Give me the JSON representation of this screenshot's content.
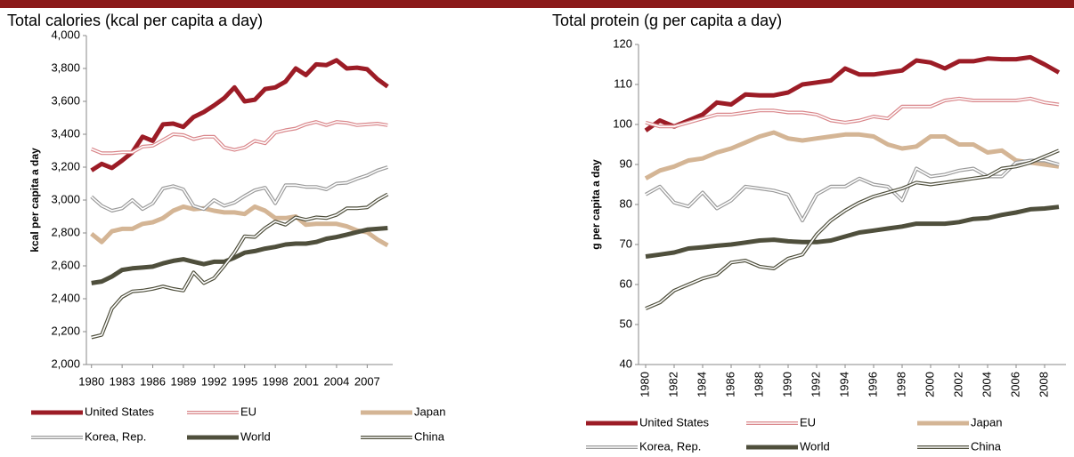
{
  "chart_data": [
    {
      "type": "line",
      "title": "Total calories (kcal per capita a day)",
      "y_label": "kcal per capita a day",
      "x": [
        1980,
        1981,
        1982,
        1983,
        1984,
        1985,
        1986,
        1987,
        1988,
        1989,
        1990,
        1991,
        1992,
        1993,
        1994,
        1995,
        1996,
        1997,
        1998,
        1999,
        2000,
        2001,
        2002,
        2003,
        2004,
        2005,
        2006,
        2007,
        2008,
        2009
      ],
      "xlim": [
        1979.5,
        2009.5
      ],
      "xticks": [
        1980,
        1983,
        1986,
        1989,
        1992,
        1995,
        1998,
        2001,
        2004,
        2007
      ],
      "ylim": [
        2000,
        4000
      ],
      "yticks": [
        {
          "value": 2000,
          "label": "2,000"
        },
        {
          "value": 2200,
          "label": "2,200"
        },
        {
          "value": 2400,
          "label": "2,400"
        },
        {
          "value": 2600,
          "label": "2,600"
        },
        {
          "value": 2800,
          "label": "2,800"
        },
        {
          "value": 3000,
          "label": "3,000"
        },
        {
          "value": 3200,
          "label": "3,200"
        },
        {
          "value": 3400,
          "label": "3,400"
        },
        {
          "value": 3600,
          "label": "3,600"
        },
        {
          "value": 3800,
          "label": "3,800"
        },
        {
          "value": 4000,
          "label": "4,000"
        }
      ],
      "series": [
        {
          "name": "United States",
          "color": "#9c1c26",
          "style": "thick",
          "values": [
            3180,
            3220,
            3195,
            3240,
            3290,
            3385,
            3360,
            3460,
            3465,
            3445,
            3505,
            3535,
            3575,
            3620,
            3685,
            3600,
            3610,
            3675,
            3685,
            3720,
            3800,
            3760,
            3825,
            3820,
            3850,
            3800,
            3805,
            3795,
            3735,
            3690
          ]
        },
        {
          "name": "EU",
          "color": "#d9868a",
          "style": "double",
          "values": [
            3310,
            3285,
            3285,
            3290,
            3290,
            3325,
            3330,
            3365,
            3400,
            3395,
            3370,
            3385,
            3385,
            3320,
            3305,
            3320,
            3360,
            3345,
            3410,
            3425,
            3435,
            3460,
            3475,
            3455,
            3475,
            3470,
            3455,
            3460,
            3465,
            3455
          ]
        },
        {
          "name": "Japan",
          "color": "#d4b595",
          "style": "thick",
          "values": [
            2795,
            2745,
            2810,
            2825,
            2825,
            2855,
            2865,
            2890,
            2935,
            2960,
            2945,
            2950,
            2935,
            2925,
            2925,
            2915,
            2960,
            2935,
            2890,
            2890,
            2900,
            2850,
            2855,
            2855,
            2855,
            2840,
            2815,
            2805,
            2760,
            2725
          ]
        },
        {
          "name": "Korea, Rep.",
          "color": "#9a9a9a",
          "style": "double",
          "values": [
            3020,
            2965,
            2935,
            2950,
            3000,
            2945,
            2980,
            3070,
            3085,
            3065,
            2965,
            2945,
            3000,
            2965,
            2985,
            3025,
            3060,
            3075,
            2980,
            3090,
            3090,
            3080,
            3080,
            3065,
            3100,
            3105,
            3130,
            3150,
            3180,
            3200
          ]
        },
        {
          "name": "World",
          "color": "#4f4f3c",
          "style": "thick",
          "values": [
            2495,
            2505,
            2535,
            2575,
            2585,
            2590,
            2595,
            2615,
            2630,
            2640,
            2625,
            2610,
            2625,
            2625,
            2650,
            2680,
            2690,
            2705,
            2715,
            2730,
            2735,
            2735,
            2745,
            2765,
            2775,
            2790,
            2805,
            2820,
            2825,
            2830
          ]
        },
        {
          "name": "China",
          "color": "#4f4f3c",
          "style": "double",
          "values": [
            2165,
            2180,
            2340,
            2410,
            2445,
            2450,
            2460,
            2475,
            2460,
            2450,
            2560,
            2495,
            2525,
            2600,
            2680,
            2780,
            2775,
            2830,
            2870,
            2850,
            2895,
            2880,
            2895,
            2890,
            2910,
            2950,
            2950,
            2955,
            3000,
            3035
          ]
        }
      ]
    },
    {
      "type": "line",
      "title": "Total protein (g per capita a day)",
      "y_label": "g per capita a day",
      "x": [
        1980,
        1981,
        1982,
        1983,
        1984,
        1985,
        1986,
        1987,
        1988,
        1989,
        1990,
        1991,
        1992,
        1993,
        1994,
        1995,
        1996,
        1997,
        1998,
        1999,
        2000,
        2001,
        2002,
        2003,
        2004,
        2005,
        2006,
        2007,
        2008,
        2009
      ],
      "xlim": [
        1979.5,
        2009.5
      ],
      "xticks": [
        1980,
        1982,
        1984,
        1986,
        1988,
        1990,
        1992,
        1994,
        1996,
        1998,
        2000,
        2002,
        2004,
        2006,
        2008
      ],
      "ylim": [
        40,
        120
      ],
      "yticks": [
        40,
        50,
        60,
        70,
        80,
        90,
        100,
        110,
        120
      ],
      "series": [
        {
          "name": "United States",
          "color": "#9c1c26",
          "style": "thick",
          "values": [
            98.5,
            101,
            99.5,
            101,
            102.5,
            105.5,
            105,
            107.5,
            107.3,
            107.3,
            108,
            110,
            110.5,
            111,
            114,
            112.5,
            112.5,
            113,
            113.5,
            116,
            115.5,
            114,
            115.8,
            115.8,
            116.5,
            116.3,
            116.3,
            116.8,
            115,
            113
          ]
        },
        {
          "name": "EU",
          "color": "#d9868a",
          "style": "double",
          "values": [
            100.5,
            99.5,
            99.5,
            100.5,
            101.5,
            102.5,
            102.5,
            103,
            103.5,
            103.5,
            103,
            103,
            102.5,
            101,
            100.5,
            101,
            102,
            101.5,
            104.5,
            104.5,
            104.5,
            106,
            106.5,
            106,
            106,
            106,
            106,
            106.5,
            105.5,
            105
          ]
        },
        {
          "name": "Japan",
          "color": "#d4b595",
          "style": "thick",
          "values": [
            86.5,
            88.5,
            89.5,
            91,
            91.5,
            93,
            94,
            95.5,
            97,
            98,
            96.5,
            96,
            96.5,
            97,
            97.5,
            97.5,
            97,
            95,
            94,
            94.5,
            97,
            97,
            95,
            95,
            93,
            93.5,
            91,
            90.5,
            90,
            89.5
          ]
        },
        {
          "name": "Korea, Rep.",
          "color": "#9a9a9a",
          "style": "double",
          "values": [
            82.5,
            84.5,
            80.5,
            79.5,
            83,
            79,
            81,
            84.5,
            84,
            83.5,
            82.5,
            76,
            82.5,
            84.5,
            84.5,
            86.5,
            85,
            84.5,
            81,
            89,
            87,
            87.5,
            88.5,
            89,
            87,
            87,
            90.5,
            91,
            91,
            90
          ]
        },
        {
          "name": "World",
          "color": "#4f4f3c",
          "style": "thick",
          "values": [
            67,
            67.5,
            68,
            69,
            69.3,
            69.7,
            70,
            70.5,
            71,
            71.2,
            70.8,
            70.6,
            70.6,
            71,
            72,
            73,
            73.5,
            74,
            74.5,
            75.2,
            75.2,
            75.2,
            75.6,
            76.4,
            76.6,
            77.4,
            78,
            78.8,
            79,
            79.4
          ]
        },
        {
          "name": "China",
          "color": "#4f4f3c",
          "style": "double",
          "values": [
            54,
            55.5,
            58.5,
            60,
            61.5,
            62.5,
            65.5,
            66,
            64.5,
            64,
            66.5,
            67.5,
            72.5,
            76,
            78.5,
            80.5,
            82,
            83,
            84,
            85.5,
            85,
            85.5,
            86,
            86.5,
            87,
            89,
            89.5,
            90.5,
            92,
            93.5
          ]
        }
      ]
    }
  ]
}
